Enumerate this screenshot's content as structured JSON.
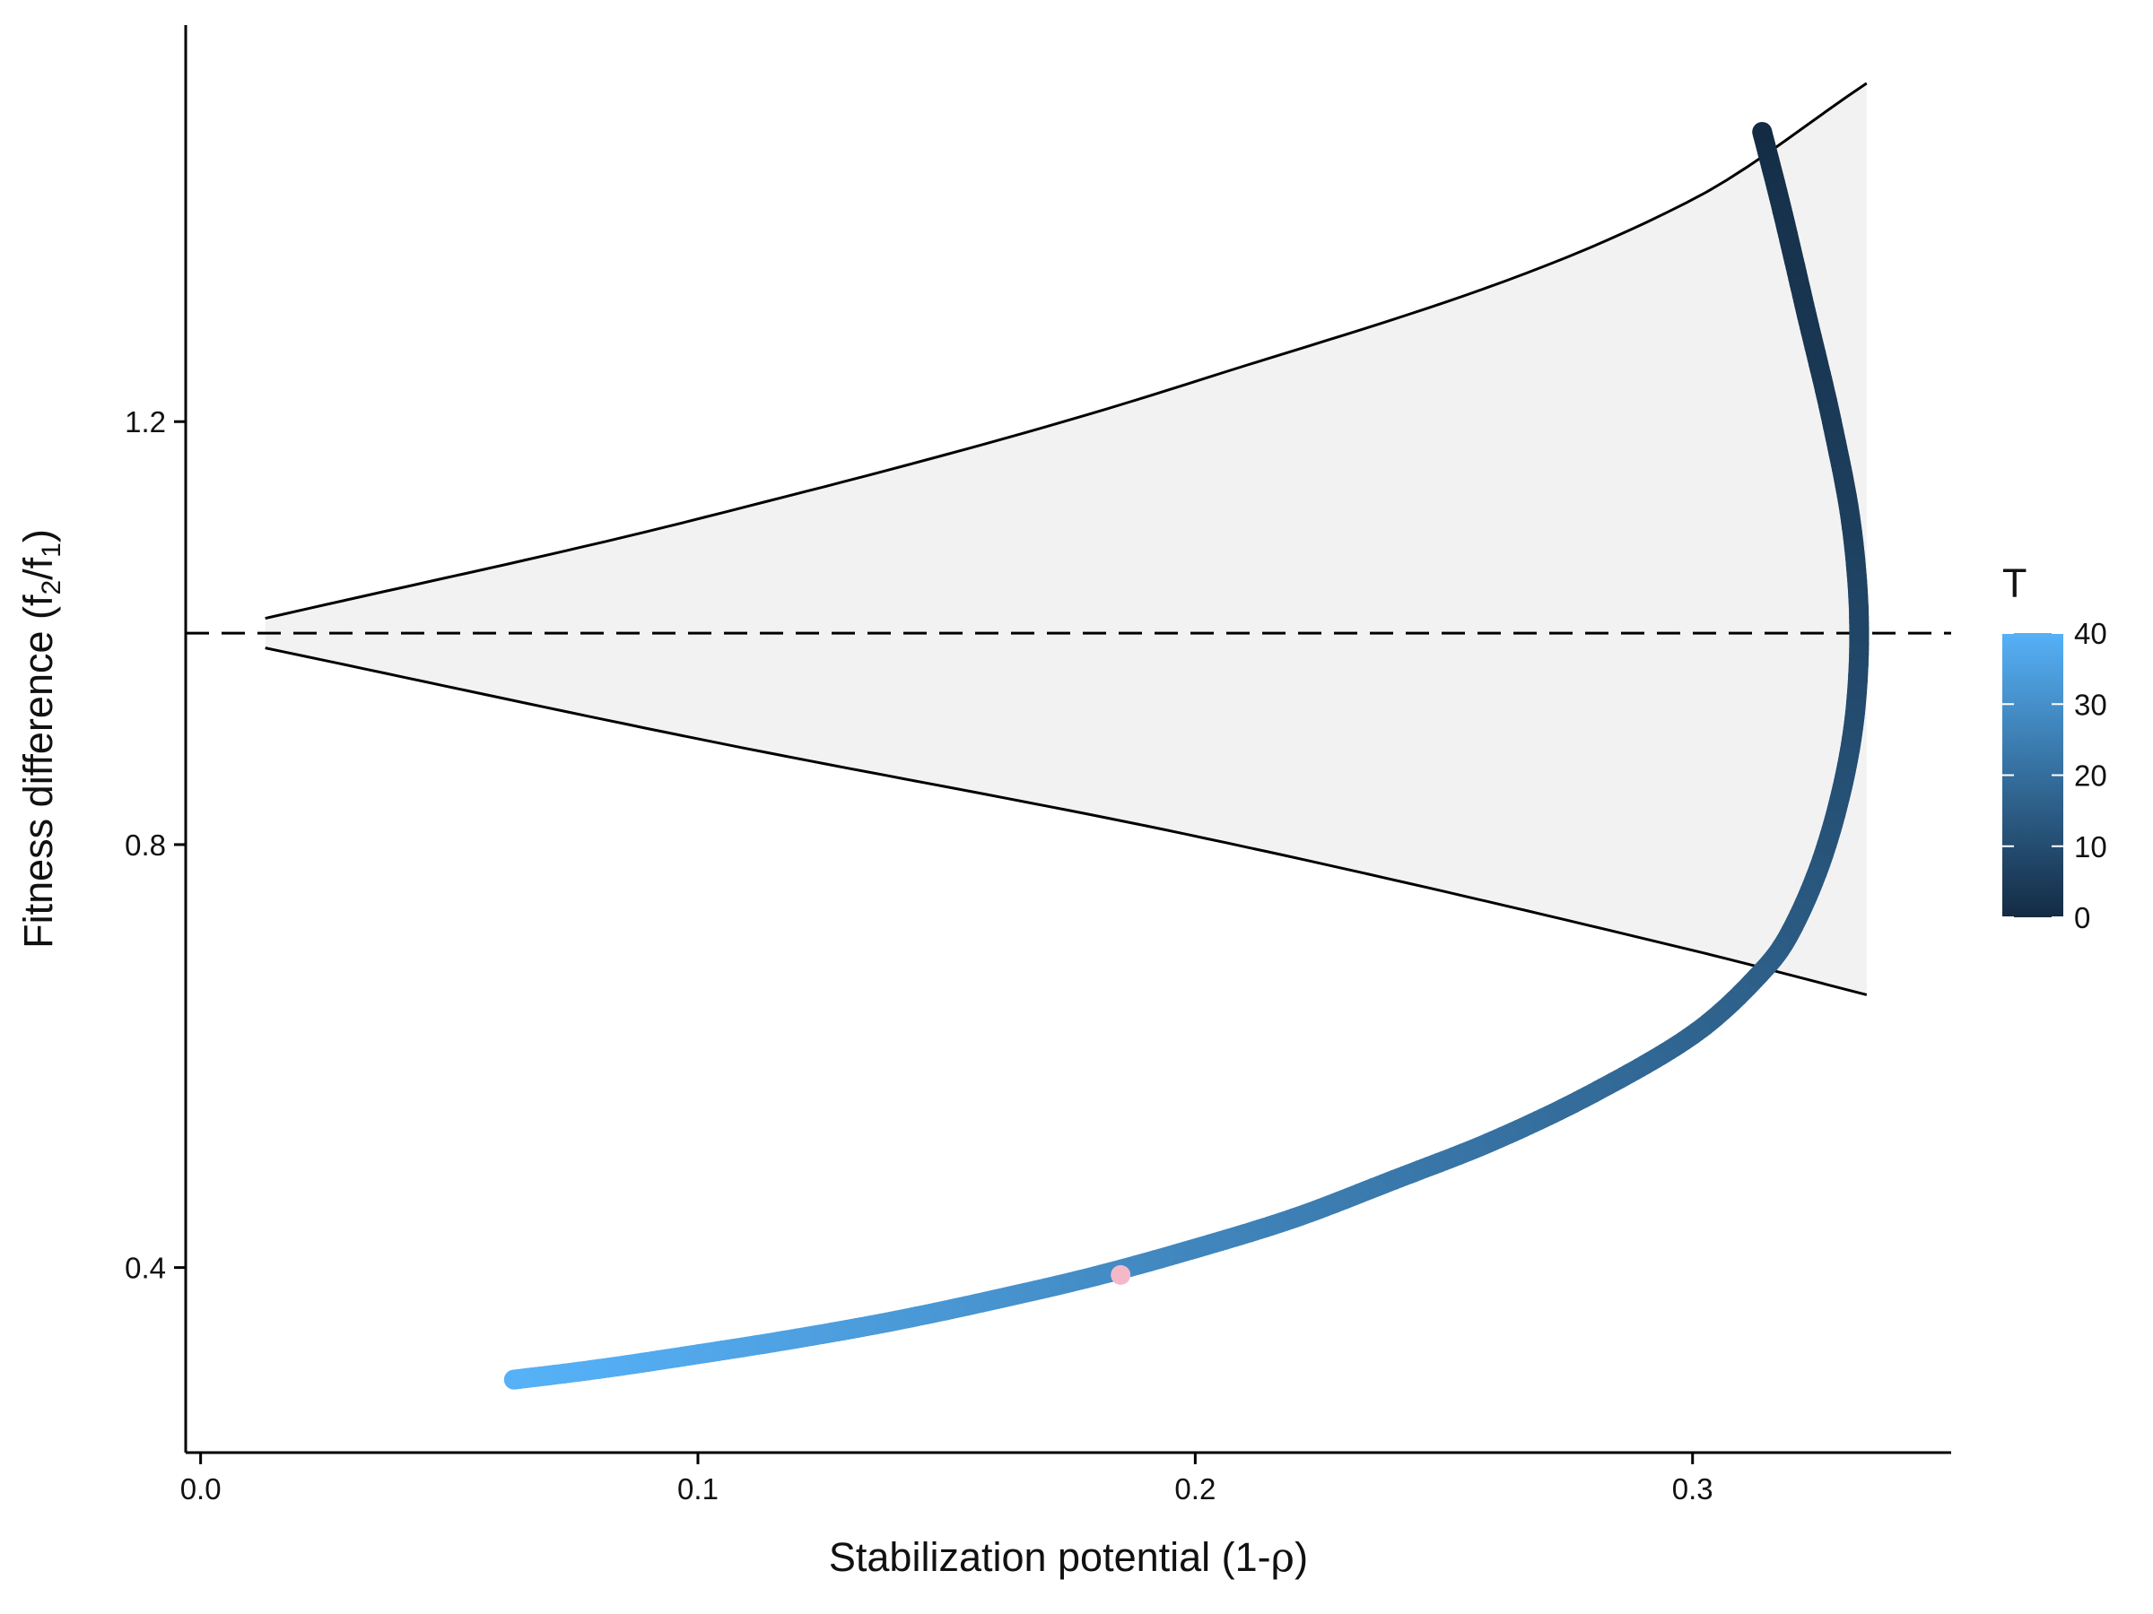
{
  "chart_data": {
    "type": "scatter",
    "xlabel": {
      "main": "Stabilization potential (1-",
      "greek": "ρ",
      "close": ")"
    },
    "ylabel": {
      "main": "Fitness difference (f",
      "sub1": "2",
      "slash": "/f",
      "sub2": "1",
      "close": ")"
    },
    "xlim": [
      -0.003,
      0.352
    ],
    "ylim": [
      0.225,
      1.575
    ],
    "x_ticks": [
      {
        "value": 0.0,
        "label": "0.0"
      },
      {
        "value": 0.1,
        "label": "0.1"
      },
      {
        "value": 0.2,
        "label": "0.2"
      },
      {
        "value": 0.3,
        "label": "0.3"
      }
    ],
    "y_ticks": [
      {
        "value": 0.4,
        "label": "0.4"
      },
      {
        "value": 0.8,
        "label": "0.8"
      },
      {
        "value": 1.2,
        "label": "1.2"
      }
    ],
    "reference_line": {
      "y": 1.0,
      "style": "dashed"
    },
    "coexistence_region": {
      "x_range": [
        0.013,
        0.335
      ],
      "fill": "#f2f2f2",
      "upper": [
        [
          0.013,
          1.014
        ],
        [
          0.1,
          1.108
        ],
        [
          0.2,
          1.238
        ],
        [
          0.3,
          1.41
        ],
        [
          0.335,
          1.52
        ]
      ],
      "lower": [
        [
          0.013,
          0.986
        ],
        [
          0.1,
          0.9
        ],
        [
          0.2,
          0.808
        ],
        [
          0.3,
          0.7
        ],
        [
          0.335,
          0.658
        ]
      ]
    },
    "series": [
      {
        "color_by": "T",
        "points": [
          [
            0.314,
            1.474,
            0
          ],
          [
            0.318,
            1.4,
            2
          ],
          [
            0.323,
            1.3,
            3
          ],
          [
            0.328,
            1.2,
            4.5
          ],
          [
            0.332,
            1.1,
            6
          ],
          [
            0.3335,
            1.0,
            8
          ],
          [
            0.332,
            0.9,
            10
          ],
          [
            0.327,
            0.8,
            12
          ],
          [
            0.32,
            0.72,
            14
          ],
          [
            0.313,
            0.675,
            15.5
          ],
          [
            0.3,
            0.62,
            17
          ],
          [
            0.28,
            0.565,
            19
          ],
          [
            0.26,
            0.52,
            21
          ],
          [
            0.24,
            0.483,
            23
          ],
          [
            0.22,
            0.447,
            25
          ],
          [
            0.2,
            0.418,
            27
          ],
          [
            0.18,
            0.392,
            29
          ],
          [
            0.16,
            0.37,
            31
          ],
          [
            0.14,
            0.35,
            33
          ],
          [
            0.12,
            0.333,
            35
          ],
          [
            0.1,
            0.318,
            37
          ],
          [
            0.08,
            0.304,
            39
          ],
          [
            0.063,
            0.294,
            40
          ]
        ]
      }
    ],
    "highlight_point": {
      "x": 0.185,
      "y": 0.393,
      "color": "#f4b8c8"
    },
    "legend": {
      "title": "T",
      "placement": "right",
      "min": 0,
      "max": 40,
      "ticks": [
        {
          "value": 0,
          "label": "0"
        },
        {
          "value": 10,
          "label": "10"
        },
        {
          "value": 20,
          "label": "20"
        },
        {
          "value": 30,
          "label": "30"
        },
        {
          "value": 40,
          "label": "40"
        }
      ],
      "low_color": "#132b43",
      "high_color": "#56b1f7"
    }
  }
}
